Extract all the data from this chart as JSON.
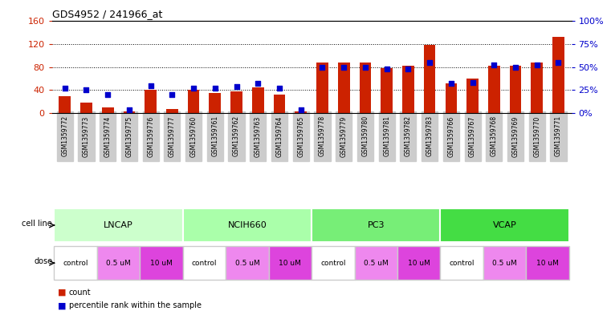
{
  "title": "GDS4952 / 241966_at",
  "samples": [
    "GSM1359772",
    "GSM1359773",
    "GSM1359774",
    "GSM1359775",
    "GSM1359776",
    "GSM1359777",
    "GSM1359760",
    "GSM1359761",
    "GSM1359762",
    "GSM1359763",
    "GSM1359764",
    "GSM1359765",
    "GSM1359778",
    "GSM1359779",
    "GSM1359780",
    "GSM1359781",
    "GSM1359782",
    "GSM1359783",
    "GSM1359766",
    "GSM1359767",
    "GSM1359768",
    "GSM1359769",
    "GSM1359770",
    "GSM1359771"
  ],
  "counts": [
    30,
    18,
    10,
    3,
    40,
    8,
    40,
    35,
    38,
    45,
    32,
    3,
    88,
    88,
    88,
    78,
    82,
    118,
    52,
    60,
    82,
    82,
    88,
    132
  ],
  "percentiles": [
    27,
    25,
    20,
    4,
    30,
    20,
    27,
    27,
    29,
    32,
    27,
    4,
    50,
    50,
    50,
    48,
    48,
    55,
    32,
    33,
    52,
    50,
    52,
    55
  ],
  "bar_color": "#cc2200",
  "dot_color": "#0000cc",
  "left_ylim": [
    0,
    160
  ],
  "right_ylim": [
    0,
    100
  ],
  "left_yticks": [
    0,
    40,
    80,
    120,
    160
  ],
  "right_yticks": [
    0,
    25,
    50,
    75,
    100
  ],
  "right_yticklabels": [
    "0%",
    "25%",
    "50%",
    "75%",
    "100%"
  ],
  "grid_vals": [
    40,
    80,
    120
  ],
  "cell_lines": [
    {
      "label": "LNCAP",
      "start": 0,
      "end": 6,
      "color": "#ccffcc"
    },
    {
      "label": "NCIH660",
      "start": 6,
      "end": 12,
      "color": "#aaffaa"
    },
    {
      "label": "PC3",
      "start": 12,
      "end": 18,
      "color": "#77ee77"
    },
    {
      "label": "VCAP",
      "start": 18,
      "end": 24,
      "color": "#44dd44"
    }
  ],
  "doses": [
    {
      "label": "control",
      "start": 0,
      "end": 2,
      "color": "#ffffff"
    },
    {
      "label": "0.5 uM",
      "start": 2,
      "end": 4,
      "color": "#ee88ee"
    },
    {
      "label": "10 uM",
      "start": 4,
      "end": 6,
      "color": "#dd44dd"
    },
    {
      "label": "control",
      "start": 6,
      "end": 8,
      "color": "#ffffff"
    },
    {
      "label": "0.5 uM",
      "start": 8,
      "end": 10,
      "color": "#ee88ee"
    },
    {
      "label": "10 uM",
      "start": 10,
      "end": 12,
      "color": "#dd44dd"
    },
    {
      "label": "control",
      "start": 12,
      "end": 14,
      "color": "#ffffff"
    },
    {
      "label": "0.5 uM",
      "start": 14,
      "end": 16,
      "color": "#ee88ee"
    },
    {
      "label": "10 uM",
      "start": 16,
      "end": 18,
      "color": "#dd44dd"
    },
    {
      "label": "control",
      "start": 18,
      "end": 20,
      "color": "#ffffff"
    },
    {
      "label": "0.5 uM",
      "start": 20,
      "end": 22,
      "color": "#ee88ee"
    },
    {
      "label": "10 uM",
      "start": 22,
      "end": 24,
      "color": "#dd44dd"
    }
  ],
  "legend_count_color": "#cc2200",
  "legend_pct_color": "#0000cc",
  "left_axis_color": "#cc2200",
  "right_axis_color": "#0000cc",
  "bg_color": "#ffffff",
  "sample_bg": "#cccccc"
}
